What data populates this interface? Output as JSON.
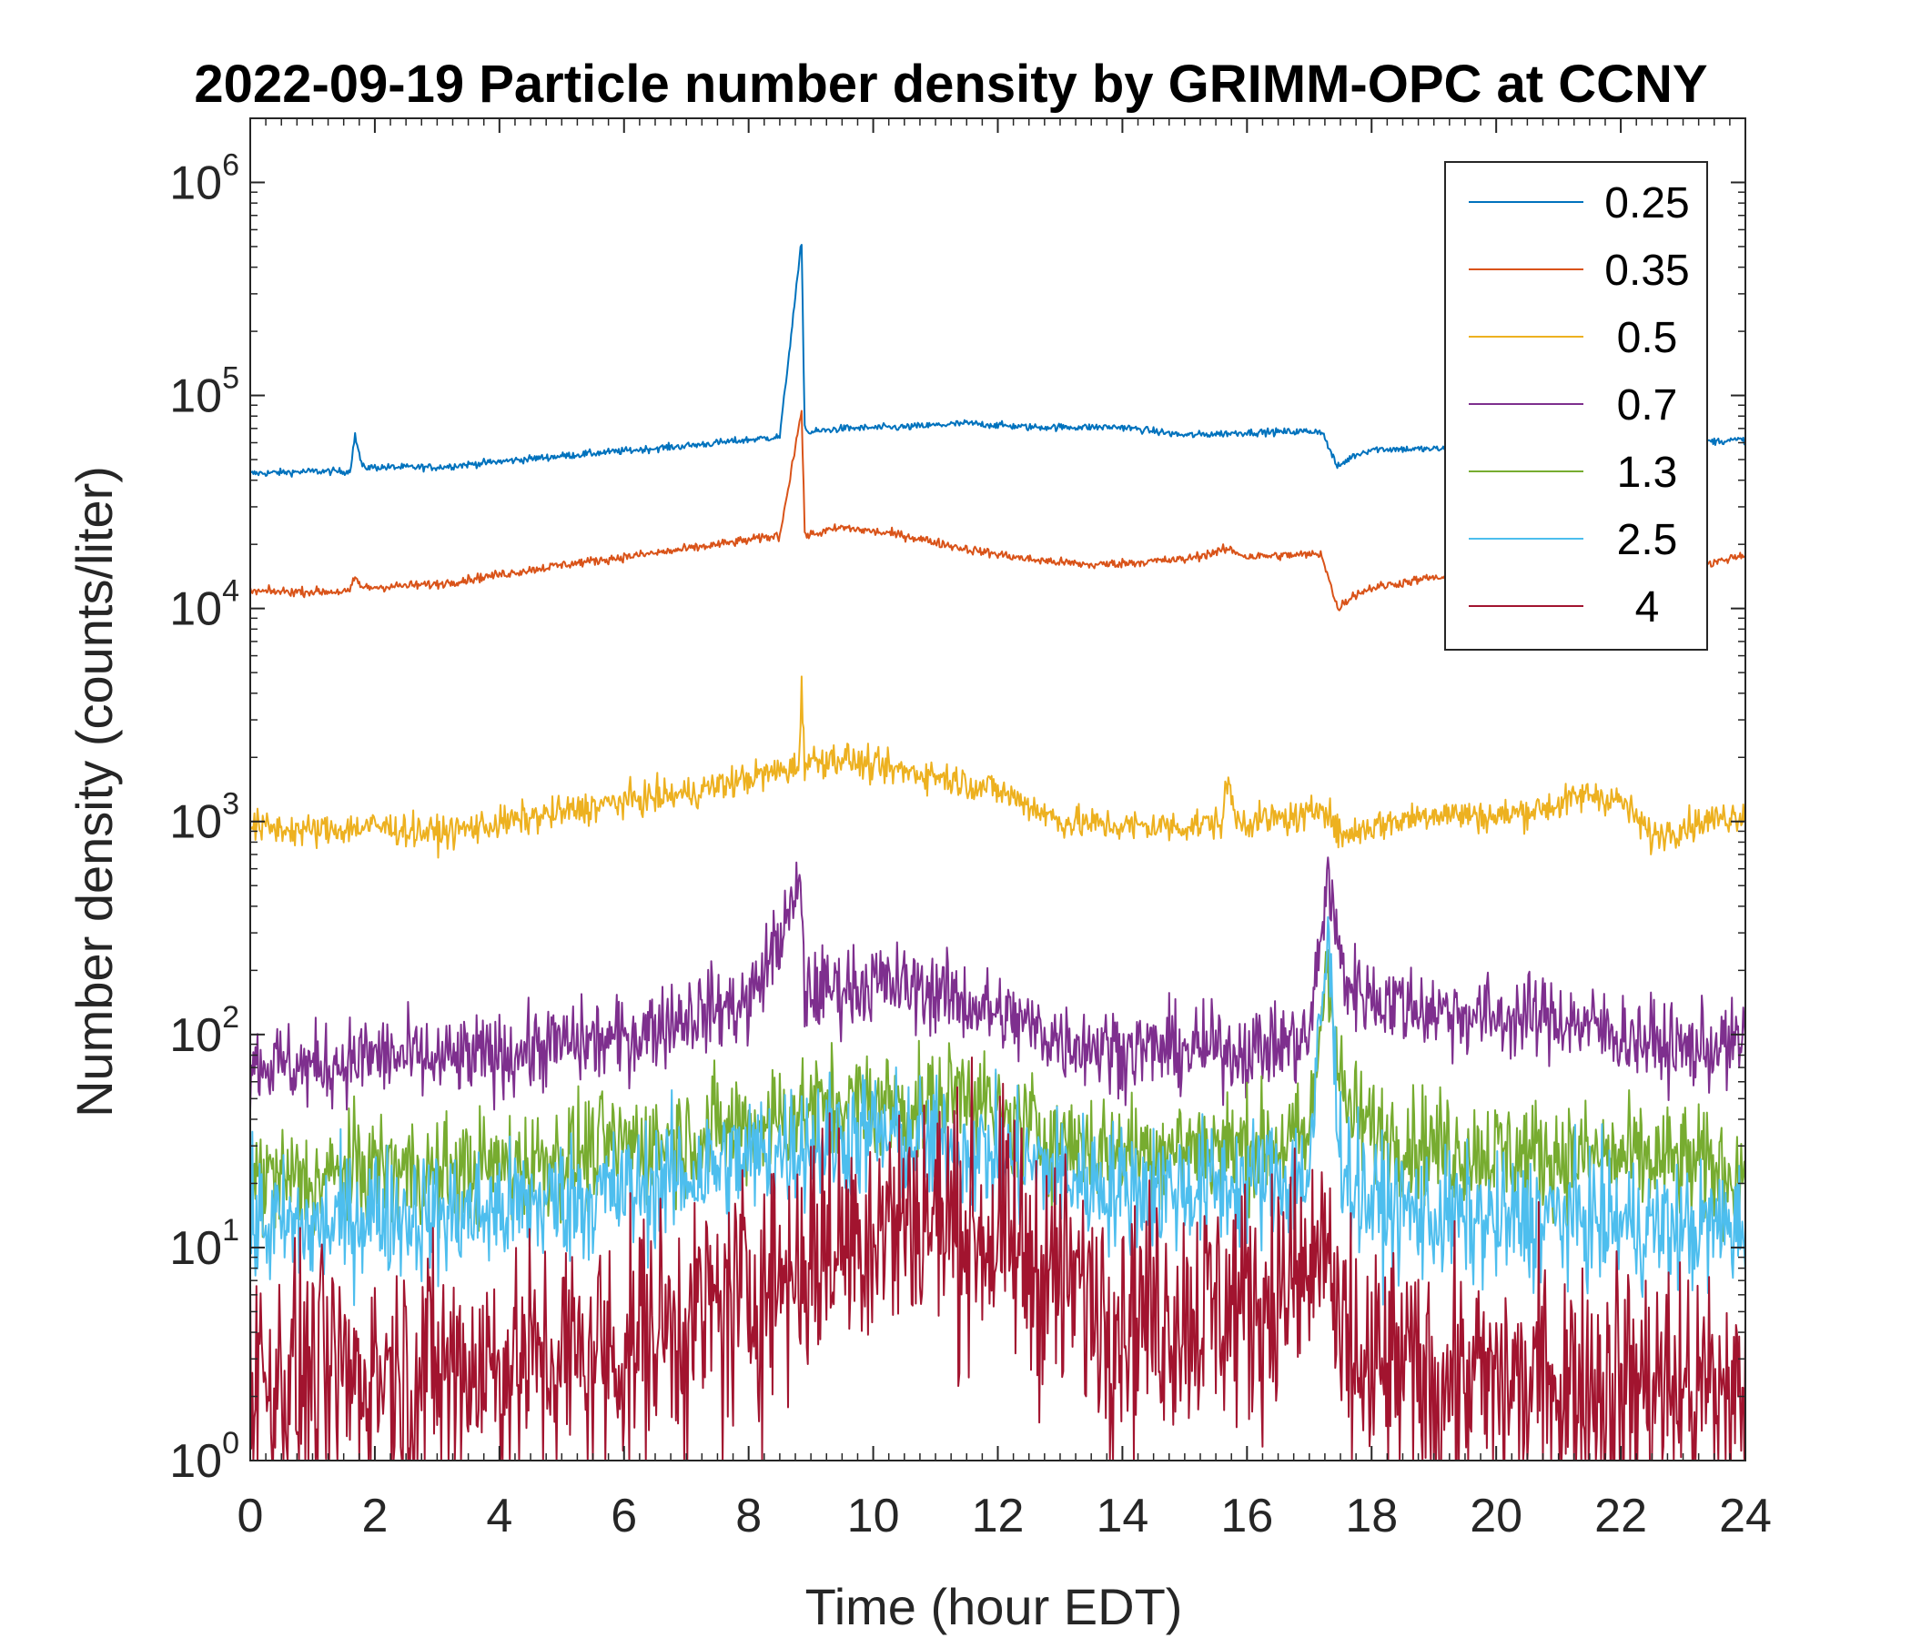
{
  "chart_data": {
    "type": "line",
    "title": "2022-09-19 Particle number density by GRIMM-OPC at CCNY",
    "xlabel": "Time (hour EDT)",
    "ylabel": "Number density (counts/liter)",
    "xlim": [
      0,
      24
    ],
    "ylim": [
      1,
      2000000
    ],
    "yscale": "log",
    "x_ticks": [
      0,
      2,
      4,
      6,
      8,
      10,
      12,
      14,
      16,
      18,
      20,
      22,
      24
    ],
    "x_tick_labels": [
      "0",
      "2",
      "4",
      "6",
      "8",
      "10",
      "12",
      "14",
      "16",
      "18",
      "20",
      "22",
      "24"
    ],
    "y_ticks": [
      1,
      10,
      100,
      1000,
      10000,
      100000,
      1000000
    ],
    "y_tick_labels": [
      {
        "base": "10",
        "exp": "0"
      },
      {
        "base": "10",
        "exp": "1"
      },
      {
        "base": "10",
        "exp": "2"
      },
      {
        "base": "10",
        "exp": "3"
      },
      {
        "base": "10",
        "exp": "4"
      },
      {
        "base": "10",
        "exp": "5"
      },
      {
        "base": "10",
        "exp": "6"
      }
    ],
    "legend_position": "top-right",
    "series": [
      {
        "name": "0.25",
        "color": "#0072BD",
        "x": [
          0,
          1,
          1.6,
          1.68,
          1.8,
          3,
          5,
          7,
          8.5,
          8.85,
          8.9,
          8.95,
          9.5,
          10.5,
          11.5,
          12.5,
          14,
          15,
          16,
          17.2,
          17.45,
          17.7,
          18,
          19,
          20,
          21,
          22,
          23,
          24
        ],
        "y": [
          43000,
          44000,
          44000,
          65000,
          46000,
          46000,
          52000,
          58000,
          64000,
          530000,
          72000,
          67000,
          70000,
          71000,
          74000,
          71000,
          71000,
          65000,
          67000,
          68000,
          46000,
          52000,
          56000,
          56000,
          58000,
          57000,
          57000,
          60000,
          62000
        ]
      },
      {
        "name": "0.35",
        "color": "#D95319",
        "x": [
          0,
          1,
          1.6,
          1.68,
          1.8,
          3,
          5,
          7,
          8.5,
          8.85,
          8.9,
          8.95,
          9.5,
          10.5,
          11.5,
          12.5,
          13.5,
          15,
          15.7,
          16,
          17.2,
          17.45,
          17.7,
          18,
          19,
          20,
          21,
          22,
          23,
          24
        ],
        "y": [
          12000,
          12000,
          12000,
          14000,
          12500,
          13000,
          16000,
          19000,
          22000,
          85000,
          23000,
          22000,
          24000,
          22000,
          19000,
          17000,
          16000,
          17000,
          19000,
          17500,
          18000,
          10000,
          11500,
          12500,
          14000,
          13000,
          14000,
          14000,
          15000,
          18000
        ]
      },
      {
        "name": "0.5",
        "color": "#EDB120",
        "x": [
          0,
          1,
          2,
          3,
          4,
          5,
          6,
          7,
          8,
          8.8,
          8.85,
          8.9,
          9.5,
          10,
          11,
          12,
          12.5,
          13,
          14,
          15,
          15.6,
          15.7,
          15.8,
          16,
          17,
          17.2,
          17.5,
          18,
          19,
          20,
          21,
          21.5,
          22,
          22.5,
          23,
          24
        ],
        "y": [
          950,
          900,
          950,
          880,
          980,
          1100,
          1250,
          1350,
          1600,
          1800,
          4200,
          1900,
          2000,
          1800,
          1650,
          1400,
          1200,
          1000,
          950,
          950,
          1000,
          1600,
          1050,
          1000,
          1050,
          1250,
          850,
          950,
          1100,
          1050,
          1200,
          1350,
          1250,
          850,
          950,
          1100
        ]
      },
      {
        "name": "0.7",
        "color": "#7E2F8E",
        "x": [
          0,
          1,
          2,
          3,
          4,
          5,
          6,
          7,
          8,
          8.85,
          8.9,
          9,
          10,
          11,
          12,
          13,
          14,
          15,
          16,
          17,
          17.3,
          17.45,
          17.6,
          18,
          19,
          20,
          21,
          22,
          23,
          24
        ],
        "y": [
          75,
          70,
          80,
          75,
          80,
          90,
          95,
          125,
          140,
          480,
          150,
          160,
          175,
          160,
          125,
          95,
          85,
          85,
          85,
          95,
          580,
          260,
          175,
          150,
          130,
          120,
          120,
          100,
          85,
          90
        ]
      },
      {
        "name": "1.3",
        "color": "#77AC30",
        "x": [
          0,
          1,
          2,
          3,
          4,
          5,
          6,
          7,
          8,
          9,
          10,
          11,
          11.5,
          12,
          13,
          14,
          15,
          16,
          17,
          17.3,
          17.45,
          17.6,
          18,
          19,
          20,
          21,
          22,
          23,
          24
        ],
        "y": [
          22,
          20,
          24,
          22,
          24,
          27,
          30,
          33,
          38,
          45,
          48,
          44,
          60,
          40,
          32,
          28,
          30,
          30,
          32,
          260,
          70,
          45,
          35,
          30,
          28,
          27,
          26,
          25,
          22
        ]
      },
      {
        "name": "2.5",
        "color": "#4DBEEE",
        "x": [
          0,
          1,
          2,
          3,
          4,
          5,
          6,
          7,
          8,
          9,
          10,
          11,
          12,
          13,
          14,
          15,
          16,
          17,
          17.3,
          17.45,
          17.6,
          18,
          19,
          20,
          21,
          22,
          23,
          24
        ],
        "y": [
          13,
          12,
          15,
          14,
          15,
          17,
          18,
          22,
          26,
          32,
          34,
          30,
          27,
          22,
          19,
          19,
          20,
          22,
          300,
          40,
          22,
          16,
          14,
          13,
          14,
          13,
          12,
          13
        ]
      },
      {
        "name": "4",
        "color": "#A2142F",
        "x": [
          0,
          1,
          2,
          3,
          4,
          5,
          6,
          7,
          8,
          9,
          10,
          11,
          12,
          13,
          14,
          15,
          16,
          17,
          17.3,
          17.45,
          18,
          19,
          20,
          21,
          22,
          23,
          24
        ],
        "y": [
          2.5,
          2.5,
          2.7,
          2.7,
          2.8,
          3,
          3.5,
          4.5,
          6,
          9,
          13,
          14,
          11,
          7,
          5,
          5,
          5.5,
          7,
          12,
          3,
          2.5,
          2.5,
          2.3,
          2.5,
          2.3,
          2.2,
          2
        ]
      }
    ]
  }
}
